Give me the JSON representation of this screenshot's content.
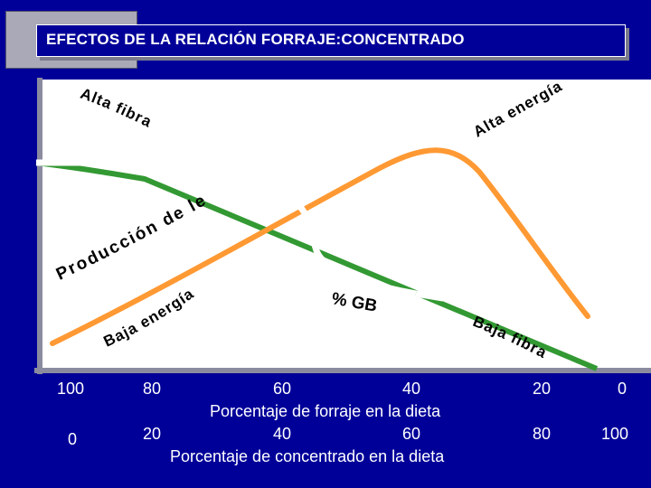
{
  "title": "EFECTOS DE LA RELACIÓN FORRAJE:CONCENTRADO",
  "curve_labels": {
    "alta_fibra": "Alta fibra",
    "alta_energia": "Alta energía",
    "produccion_leche": "Producción de leche",
    "baja_energia": "Baja energía",
    "pct_gb": "% GB",
    "baja_fibra": "Baja fibra"
  },
  "axes": {
    "forraje_label": "Porcentaje de forraje en la dieta",
    "concentrado_label": "Porcentaje de concentrado en la dieta",
    "forraje_ticks": [
      "100",
      "80",
      "60",
      "40",
      "20",
      "0"
    ],
    "concentrado_ticks": [
      "0",
      "20",
      "40",
      "60",
      "80",
      "100"
    ]
  },
  "colors": {
    "background": "#000099",
    "plot_area": "#ffffff",
    "fibra_line": "#339933",
    "energia_line": "#ff9933",
    "gb_line": "#ffffff",
    "text": "#ffffff"
  }
}
